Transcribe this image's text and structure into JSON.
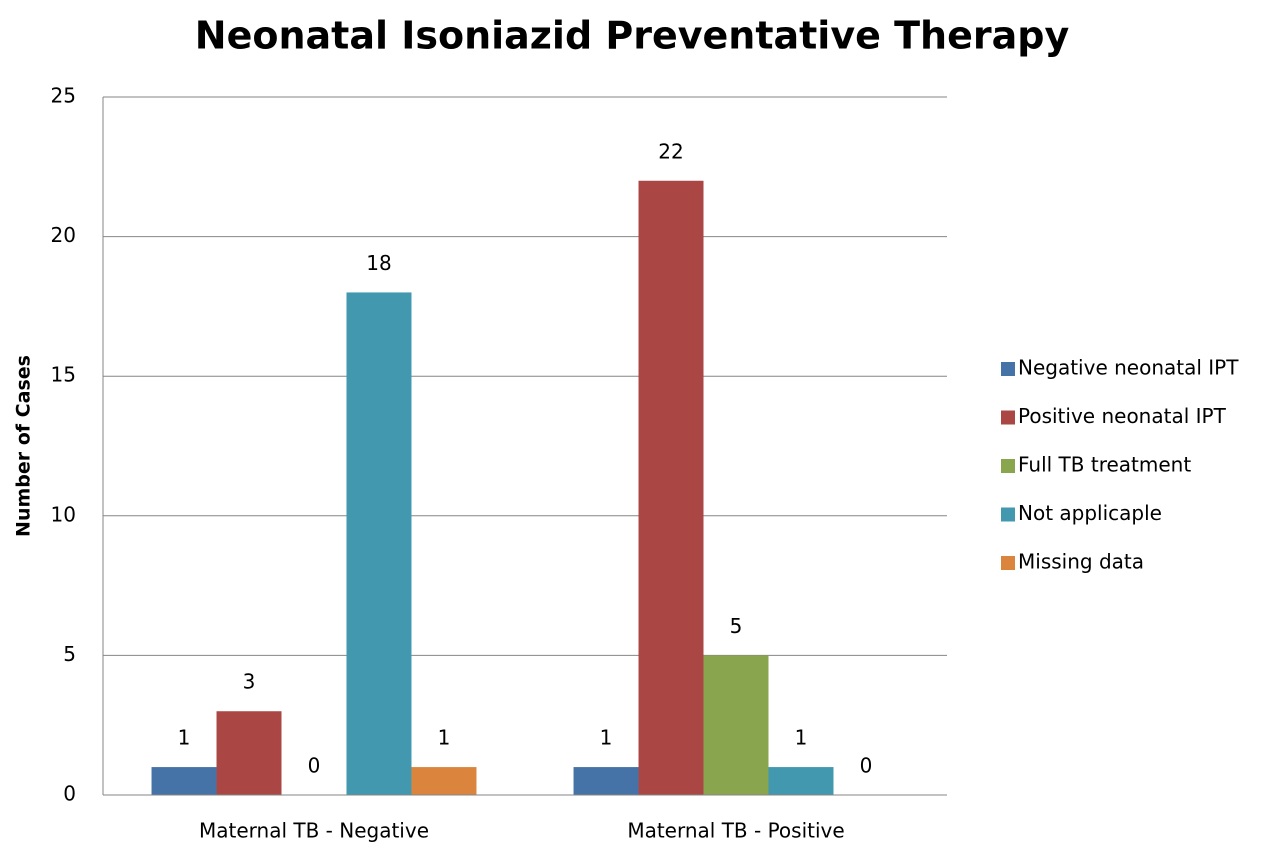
{
  "chart_data": {
    "type": "bar",
    "title": "Neonatal Isoniazid Preventative Therapy",
    "y_label": "Number of Cases",
    "categories": [
      "Maternal TB - Negative",
      "Maternal TB - Positive"
    ],
    "series": [
      {
        "name": "Negative neonatal IPT",
        "color": "#4572a7",
        "values": [
          1,
          1
        ]
      },
      {
        "name": "Positive neonatal IPT",
        "color": "#aa4643",
        "values": [
          3,
          22
        ]
      },
      {
        "name": "Full TB treatment",
        "color": "#89a54e",
        "values": [
          0,
          5
        ]
      },
      {
        "name": "Not applicaple",
        "color": "#4198af",
        "values": [
          18,
          1
        ]
      },
      {
        "name": "Missing data",
        "color": "#db843d",
        "values": [
          1,
          0
        ]
      }
    ],
    "ylim": [
      0,
      25
    ],
    "yticks": [
      0,
      5,
      10,
      15,
      20,
      25
    ],
    "grid": true,
    "legend": "right"
  }
}
